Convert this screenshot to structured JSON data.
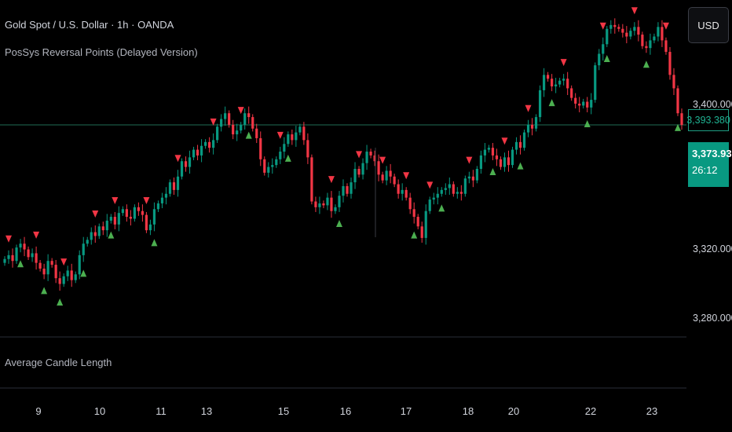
{
  "header": {
    "title": "Gold Spot / U.S. Dollar · 1h · OANDA",
    "indicator": "PosSys Reversal Points (Delayed Version)"
  },
  "toolbar": {
    "currency": "USD"
  },
  "price_axis": {
    "ticks": [
      "3,400.000",
      "3,320.000",
      "3,280.000"
    ],
    "reference_price": "3,393.380",
    "last_price": "3,373.930",
    "countdown": "26:12"
  },
  "time_axis": {
    "ticks": [
      "9",
      "10",
      "11",
      "13",
      "15",
      "16",
      "17",
      "18",
      "20",
      "22",
      "23"
    ]
  },
  "lower_pane": {
    "title": "Average Candle Length"
  },
  "colors": {
    "up": "#089981",
    "down": "#f23645",
    "bull_marker": "#4caf50",
    "bear_marker": "#f23645",
    "level_line": "#1f6b55"
  },
  "chart_data": {
    "type": "candlestick",
    "symbol": "XAU/USD",
    "timeframe": "1h",
    "y_ticks": [
      3400,
      3320,
      3280
    ],
    "ylim": [
      3265,
      3437
    ],
    "x_ticks": [
      "9",
      "10",
      "11",
      "13",
      "15",
      "16",
      "17",
      "18",
      "20",
      "22",
      "23"
    ],
    "horizontal_line": 3373.93,
    "last_price": 3373.93,
    "series_close": [
      3304,
      3306,
      3303,
      3310,
      3312,
      3309,
      3305,
      3307,
      3302,
      3299,
      3296,
      3303,
      3301,
      3294,
      3291,
      3295,
      3298,
      3293,
      3296,
      3306,
      3312,
      3314,
      3318,
      3316,
      3321,
      3319,
      3324,
      3326,
      3322,
      3328,
      3330,
      3326,
      3325,
      3331,
      3329,
      3327,
      3319,
      3322,
      3330,
      3333,
      3336,
      3338,
      3344,
      3340,
      3347,
      3355,
      3352,
      3357,
      3361,
      3358,
      3363,
      3365,
      3362,
      3366,
      3373,
      3377,
      3380,
      3374,
      3369,
      3371,
      3374,
      3380,
      3378,
      3372,
      3367,
      3356,
      3349,
      3352,
      3353,
      3356,
      3360,
      3364,
      3369,
      3366,
      3370,
      3373,
      3366,
      3357,
      3334,
      3331,
      3333,
      3332,
      3336,
      3329,
      3331,
      3337,
      3342,
      3338,
      3344,
      3351,
      3348,
      3354,
      3360,
      3358,
      3355,
      3348,
      3345,
      3350,
      3347,
      3343,
      3338,
      3340,
      3336,
      3330,
      3326,
      3321,
      3315,
      3329,
      3335,
      3336,
      3338,
      3340,
      3341,
      3343,
      3338,
      3339,
      3338,
      3346,
      3347,
      3345,
      3351,
      3358,
      3361,
      3362,
      3358,
      3356,
      3352,
      3357,
      3353,
      3361,
      3365,
      3362,
      3370,
      3374,
      3372,
      3378,
      3392,
      3400,
      3398,
      3394,
      3395,
      3397,
      3398,
      3393,
      3388,
      3385,
      3384,
      3386,
      3383,
      3387,
      3405,
      3411,
      3416,
      3424,
      3426,
      3425,
      3424,
      3422,
      3420,
      3423,
      3425,
      3421,
      3415,
      3414,
      3418,
      3420,
      3425,
      3418,
      3412,
      3400,
      3393,
      3380,
      3373.93
    ],
    "bull_markers_index": [
      4,
      10,
      14,
      20,
      27,
      38,
      62,
      72,
      85,
      104,
      111,
      124,
      131,
      139,
      148,
      153,
      163,
      171
    ],
    "bear_markers_index": [
      1,
      8,
      15,
      23,
      28,
      36,
      44,
      53,
      60,
      70,
      83,
      90,
      96,
      102,
      108,
      118,
      127,
      133,
      142,
      152,
      160,
      168
    ],
    "markers_note": "triangles: up = bullish reversal below candle, down = bearish reversal above candle"
  }
}
